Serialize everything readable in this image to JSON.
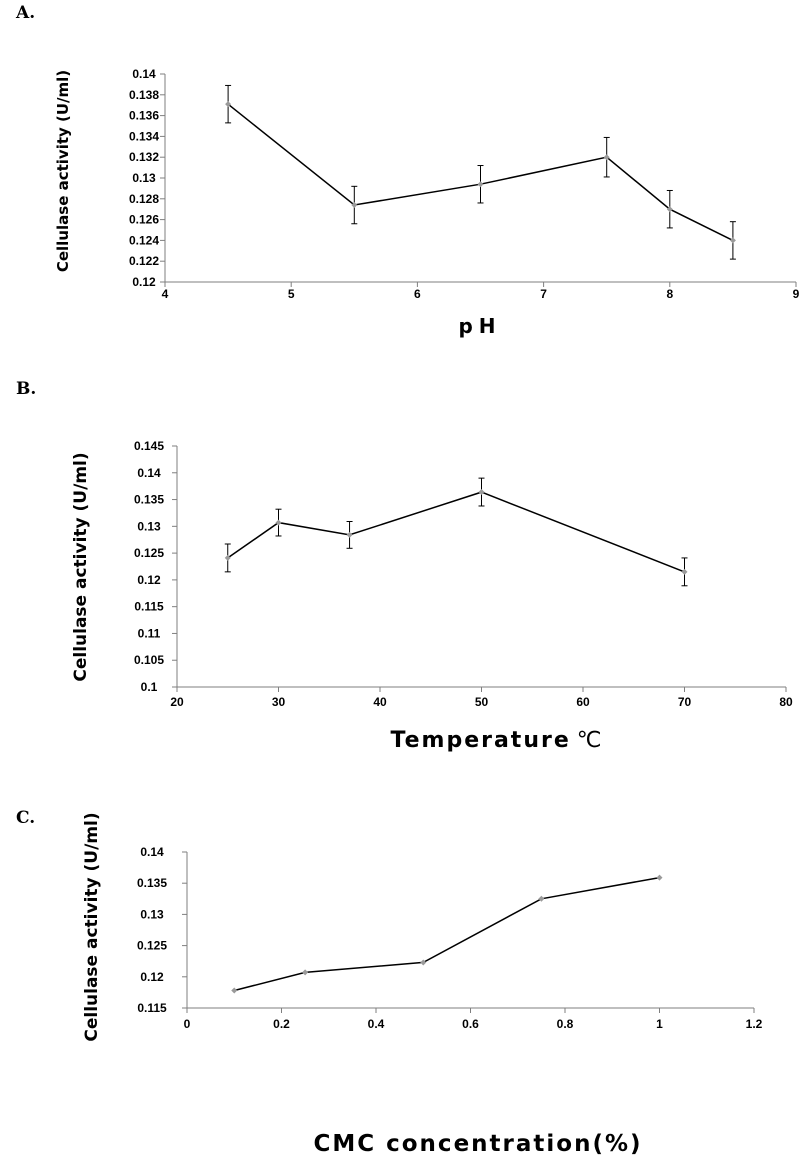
{
  "chart_data": [
    {
      "type": "line",
      "panel": "A.",
      "xlabel": "pH",
      "ylabel": "Cellulase activity (U/ml)",
      "xlim": [
        4,
        9
      ],
      "ylim": [
        0.12,
        0.14
      ],
      "x_ticks": [
        "4",
        "5",
        "6",
        "7",
        "8",
        "9"
      ],
      "y_ticks": [
        "0.12",
        "0.122",
        "0.124",
        "0.126",
        "0.128",
        "0.13",
        "0.132",
        "0.134",
        "0.136",
        "0.138",
        "0.14"
      ],
      "series": [
        {
          "x": [
            4.5,
            5.5,
            6.5,
            7.5,
            8.0,
            8.5
          ],
          "y": [
            0.1371,
            0.1274,
            0.1294,
            0.132,
            0.127,
            0.124
          ],
          "error": [
            0.0018,
            0.0018,
            0.0018,
            0.0019,
            0.0018,
            0.0018
          ]
        }
      ],
      "grid": false,
      "legend": false
    },
    {
      "type": "line",
      "panel": "B.",
      "xlabel": "Temperature",
      "xlabel_unit": "℃",
      "ylabel": "Cellulase activity (U/ml)",
      "xlim": [
        20,
        80
      ],
      "ylim": [
        0.1,
        0.145
      ],
      "x_ticks": [
        "20",
        "30",
        "40",
        "50",
        "60",
        "70",
        "80"
      ],
      "y_ticks": [
        "0.1",
        "0.105",
        "0.11",
        "0.115",
        "0.12",
        "0.125",
        "0.13",
        "0.135",
        "0.14",
        "0.145"
      ],
      "series": [
        {
          "x": [
            25,
            30,
            37,
            50,
            70
          ],
          "y": [
            0.1241,
            0.1307,
            0.1284,
            0.1364,
            0.1215
          ],
          "error": [
            0.0026,
            0.0025,
            0.0025,
            0.0026,
            0.0026
          ]
        }
      ],
      "grid": false,
      "legend": false
    },
    {
      "type": "line",
      "panel": "C.",
      "xlabel": "CMC concentration(%)",
      "ylabel": "Cellulase activity (U/ml)",
      "xlim": [
        0,
        1.2
      ],
      "ylim": [
        0.115,
        0.14
      ],
      "x_ticks": [
        "0",
        "0.2",
        "0.4",
        "0.6",
        "0.8",
        "1",
        "1.2"
      ],
      "y_ticks": [
        "0.115",
        "0.12",
        "0.125",
        "0.13",
        "0.135",
        "0.14"
      ],
      "series": [
        {
          "x": [
            0.1,
            0.25,
            0.5,
            0.75,
            1.0
          ],
          "y": [
            0.1178,
            0.1207,
            0.1223,
            0.1325,
            0.1359
          ]
        }
      ],
      "grid": false,
      "legend": false
    }
  ]
}
